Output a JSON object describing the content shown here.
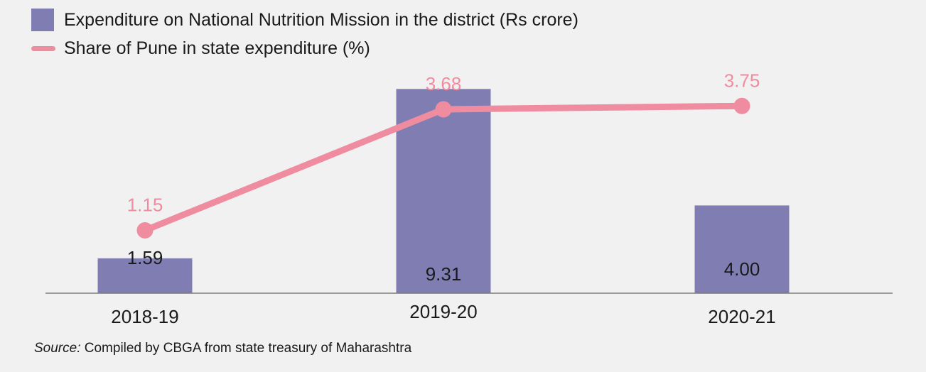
{
  "legend": {
    "bar_label": "Expenditure on National Nutrition Mission in the district (Rs crore)",
    "line_label": "Share of Pune in state expenditure (%)"
  },
  "source": {
    "prefix": "Source:",
    "text": " Compiled by CBGA from state treasury of Maharashtra"
  },
  "colors": {
    "bar": "#807db3",
    "line": "#f08ca0",
    "line_label": "#f08ca0",
    "axis": "#7a7a7a",
    "text": "#1a1a1a",
    "background": "#f2f1f1"
  },
  "chart_data": {
    "type": "bar",
    "categories": [
      "2018-19",
      "2019-20",
      "2020-21"
    ],
    "series": [
      {
        "name": "Expenditure on National Nutrition Mission in the district (Rs crore)",
        "type": "bar",
        "values": [
          1.59,
          9.31,
          4.0
        ],
        "labels": [
          "1.59",
          "9.31",
          "4.00"
        ]
      },
      {
        "name": "Share of Pune in state expenditure (%)",
        "type": "line",
        "values": [
          1.15,
          3.68,
          3.75
        ],
        "labels": [
          "1.15",
          "3.68",
          "3.75"
        ]
      }
    ],
    "grid": false,
    "legend_position": "top-left"
  }
}
